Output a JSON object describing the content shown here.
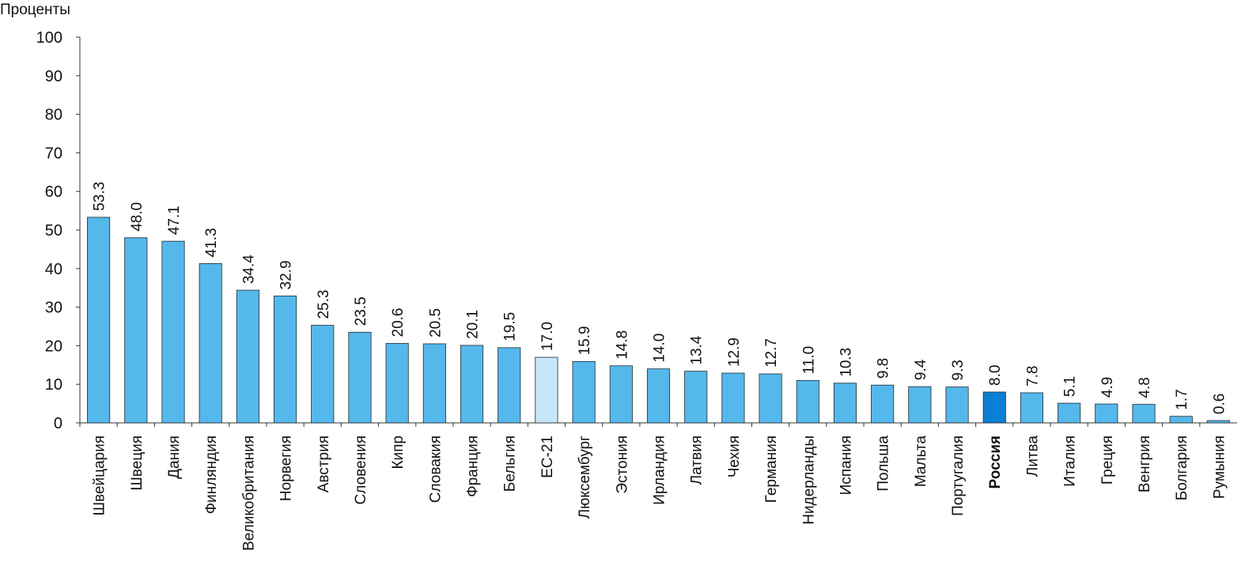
{
  "chart_data": {
    "type": "bar",
    "ylabel": "Проценты",
    "ylim": [
      0,
      100
    ],
    "yticks": [
      0,
      10,
      20,
      30,
      40,
      50,
      60,
      70,
      80,
      90,
      100
    ],
    "grid": false,
    "categories": [
      "Швейцария",
      "Швеция",
      "Дания",
      "Финляндия",
      "Великобритания",
      "Норвегия",
      "Австрия",
      "Словения",
      "Кипр",
      "Словакия",
      "Франция",
      "Бельгия",
      "ЕС-21",
      "Люксембург",
      "Эстония",
      "Ирландия",
      "Латвия",
      "Чехия",
      "Германия",
      "Нидерланды",
      "Испания",
      "Польша",
      "Мальта",
      "Португалия",
      "Россия",
      "Литва",
      "Италия",
      "Греция",
      "Венгрия",
      "Болгария",
      "Румыния"
    ],
    "values": [
      53.3,
      48.0,
      47.1,
      41.3,
      34.4,
      32.9,
      25.3,
      23.5,
      20.6,
      20.5,
      20.1,
      19.5,
      17.0,
      15.9,
      14.8,
      14.0,
      13.4,
      12.9,
      12.7,
      11.0,
      10.3,
      9.8,
      9.4,
      9.3,
      8.0,
      7.8,
      5.1,
      4.9,
      4.8,
      1.7,
      0.6
    ],
    "value_labels": [
      "53.3",
      "48.0",
      "47.1",
      "41.3",
      "34.4",
      "32.9",
      "25.3",
      "23.5",
      "20.6",
      "20.5",
      "20.1",
      "19.5",
      "17.0",
      "15.9",
      "14.8",
      "14.0",
      "13.4",
      "12.9",
      "12.7",
      "11.0",
      "10.3",
      "9.8",
      "9.4",
      "9.3",
      "8.0",
      "7.8",
      "5.1",
      "4.9",
      "4.8",
      "1.7",
      "0.6"
    ],
    "highlight": {
      "ЕС-21": "#c5e6f8",
      "Россия": "#0a7fd4"
    },
    "bold_categories": [
      "Россия"
    ],
    "colors": {
      "bar": "#55b8eb",
      "bar_stroke": "#1f2a33",
      "axis": "#333333"
    }
  }
}
